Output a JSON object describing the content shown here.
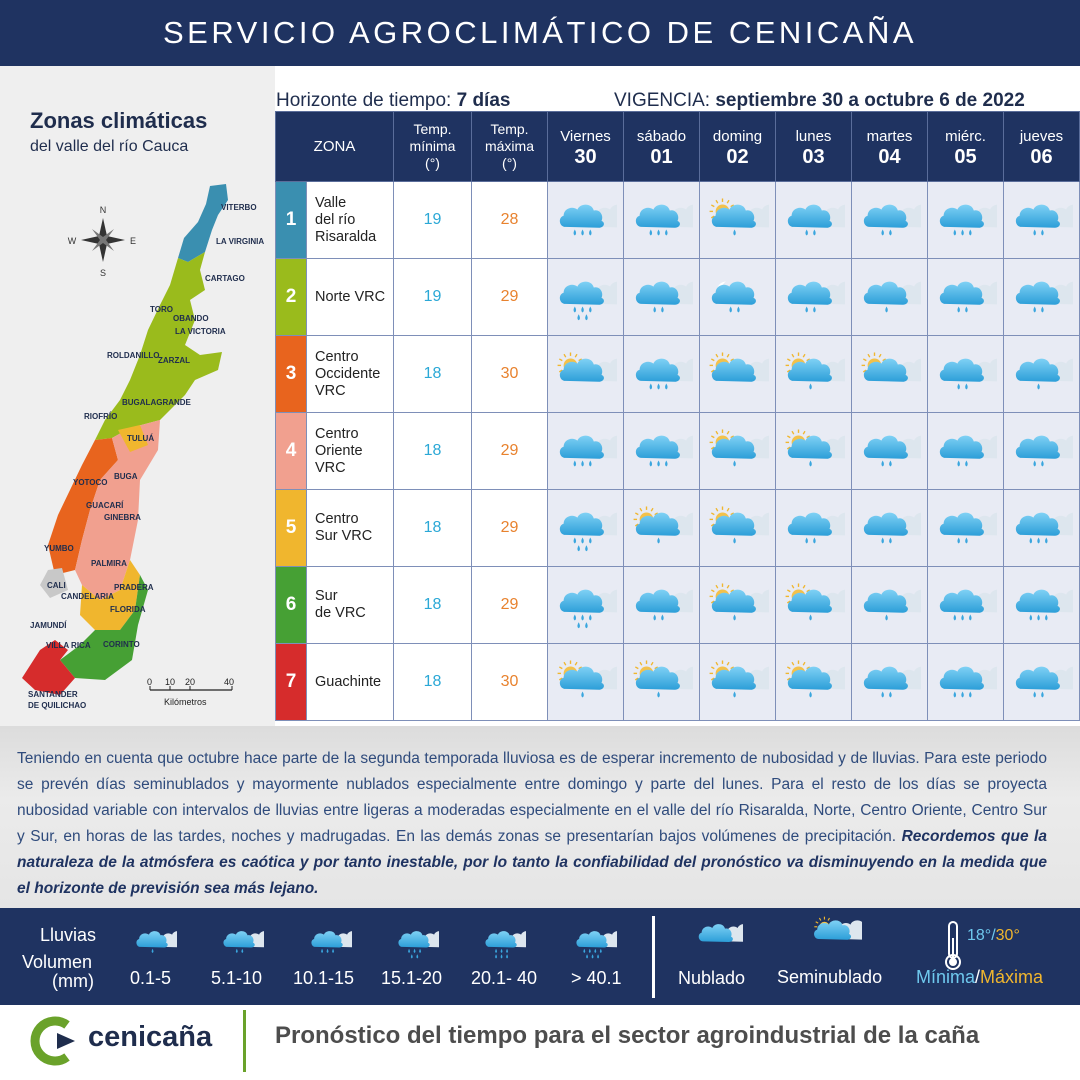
{
  "header": {
    "title": "SERVICIO AGROCLIMÁTICO DE CENICAÑA"
  },
  "map": {
    "title": "Zonas climáticas",
    "subtitle": "del valle del río Cauca",
    "compass": {
      "n": "N",
      "s": "S",
      "e": "E",
      "w": "W"
    },
    "scale": {
      "ticks": [
        "0",
        "10",
        "20",
        "40"
      ],
      "unit": "Kilómetros"
    },
    "towns": [
      "VITERBO",
      "LA VIRGINIA",
      "CARTAGO",
      "TORO",
      "OBANDO",
      "LA VICTORIA",
      "ROLDANILLO",
      "ZARZAL",
      "BUGALAGRANDE",
      "RIOFRÍO",
      "TULUÁ",
      "BUGA",
      "YOTOCO",
      "GUACARÍ",
      "GINEBRA",
      "YUMBO",
      "PALMIRA",
      "PRADERA",
      "CALI",
      "CANDELARIA",
      "FLORIDA",
      "JAMUNDÍ",
      "VILLA RICA",
      "CORINTO",
      "SANTANDER",
      "DE QUILICHAO"
    ]
  },
  "horizon": {
    "label": "Horizonte de tiempo:",
    "value": "7 días"
  },
  "validity": {
    "label": "VIGENCIA:",
    "value": "septiembre 30 a octubre 6 de 2022"
  },
  "table": {
    "zone_header": "ZONA",
    "tmin_header": [
      "Temp.",
      "mínima",
      "(°)"
    ],
    "tmax_header": [
      "Temp.",
      "máxima",
      "(°)"
    ],
    "days": [
      {
        "name": "Viernes",
        "num": "30"
      },
      {
        "name": "sábado",
        "num": "01"
      },
      {
        "name": "doming",
        "num": "02"
      },
      {
        "name": "lunes",
        "num": "03"
      },
      {
        "name": "martes",
        "num": "04"
      },
      {
        "name": "miérc.",
        "num": "05"
      },
      {
        "name": "jueves",
        "num": "06"
      }
    ],
    "zones": [
      {
        "num": "1",
        "color": "#3a8fb0",
        "name": [
          "Valle",
          "del río",
          "Risaralda"
        ],
        "tmin": "19",
        "tmax": "28",
        "forecast": [
          "cloud-rain-3",
          "cloud-rain-3",
          "partly-sunny-rain-1",
          "cloud-rain-2",
          "cloud-rain-2",
          "cloud-rain-3",
          "cloud-rain-2"
        ]
      },
      {
        "num": "2",
        "color": "#9abb1c",
        "name": [
          "Norte VRC"
        ],
        "tmin": "19",
        "tmax": "29",
        "forecast": [
          "cloud-rain-4",
          "cloud-rain-2",
          "moon-cloud-rain-2",
          "cloud-rain-2",
          "cloud-rain-1",
          "cloud-rain-2",
          "cloud-rain-2"
        ]
      },
      {
        "num": "3",
        "color": "#e8641e",
        "name": [
          "Centro",
          "Occidente",
          "VRC"
        ],
        "tmin": "18",
        "tmax": "30",
        "forecast": [
          "partly-sunny",
          "cloud-rain-3",
          "partly-sunny",
          "partly-sunny-rain-1",
          "partly-sunny",
          "cloud-rain-2",
          "cloud-rain-1"
        ]
      },
      {
        "num": "4",
        "color": "#f1a08f",
        "name": [
          "Centro",
          "Oriente",
          "VRC"
        ],
        "tmin": "18",
        "tmax": "29",
        "forecast": [
          "cloud-rain-3",
          "cloud-rain-3",
          "partly-sunny-rain-1",
          "partly-sunny-rain-1",
          "cloud-rain-2",
          "cloud-rain-2",
          "cloud-rain-2"
        ]
      },
      {
        "num": "5",
        "color": "#f0b62e",
        "name": [
          "Centro",
          "Sur VRC"
        ],
        "tmin": "18",
        "tmax": "29",
        "forecast": [
          "cloud-rain-4",
          "partly-sunny-rain-1",
          "partly-sunny-rain-1",
          "cloud-rain-2",
          "cloud-rain-2",
          "cloud-rain-2",
          "cloud-rain-3"
        ]
      },
      {
        "num": "6",
        "color": "#46a034",
        "name": [
          "Sur",
          "de VRC"
        ],
        "tmin": "18",
        "tmax": "29",
        "forecast": [
          "cloud-rain-4",
          "cloud-rain-2",
          "partly-sunny-rain-1",
          "partly-sunny-rain-1",
          "cloud-rain-1",
          "cloud-rain-3",
          "cloud-rain-3"
        ]
      },
      {
        "num": "7",
        "color": "#d62c2c",
        "name": [
          "Guachinte"
        ],
        "tmin": "18",
        "tmax": "30",
        "forecast": [
          "partly-sunny-rain-1",
          "partly-sunny-rain-1",
          "partly-sunny-rain-1",
          "partly-sunny-rain-1",
          "cloud-rain-2",
          "cloud-rain-3",
          "cloud-rain-2"
        ]
      }
    ]
  },
  "description": {
    "text": "Teniendo en cuenta que octubre hace parte de la segunda temporada lluviosa es de esperar incremento de nubosidad y de lluvias.  Para este periodo se prevén días seminublados y mayormente nublados especialmente entre domingo y parte del lunes.   Para el resto de los días se proyecta nubosidad variable con intervalos de lluvias entre ligeras a moderadas especialmente en el valle del río Risaralda, Norte, Centro Oriente, Centro Sur y Sur, en horas de las tardes, noches y madrugadas.  En las demás zonas se presentarían bajos volúmenes de precipitación.",
    "emphasis": "Recordemos que la naturaleza de la atmósfera es caótica y por tanto inestable, por lo tanto la confiabilidad del pronóstico va disminuyendo en la medida que el horizonte de previsión sea más lejano."
  },
  "legend": {
    "rain_label": "Lluvias",
    "volume_label": "Volumen",
    "unit": "(mm)",
    "ranges": [
      "0.1-5",
      "5.1-10",
      "10.1-15",
      "15.1-20",
      "20.1- 40",
      "> 40.1"
    ],
    "cloudy": "Nublado",
    "partly_cloudy": "Seminublado",
    "temp_example": "18°/30°",
    "min_label": "Mínima",
    "max_label": "Máxima",
    "min_color": "#6fc9ee",
    "max_color": "#f0b62e"
  },
  "footer": {
    "logo": "cenicaña",
    "tagline": "Pronóstico del tiempo para el sector agroindustrial de la caña"
  }
}
